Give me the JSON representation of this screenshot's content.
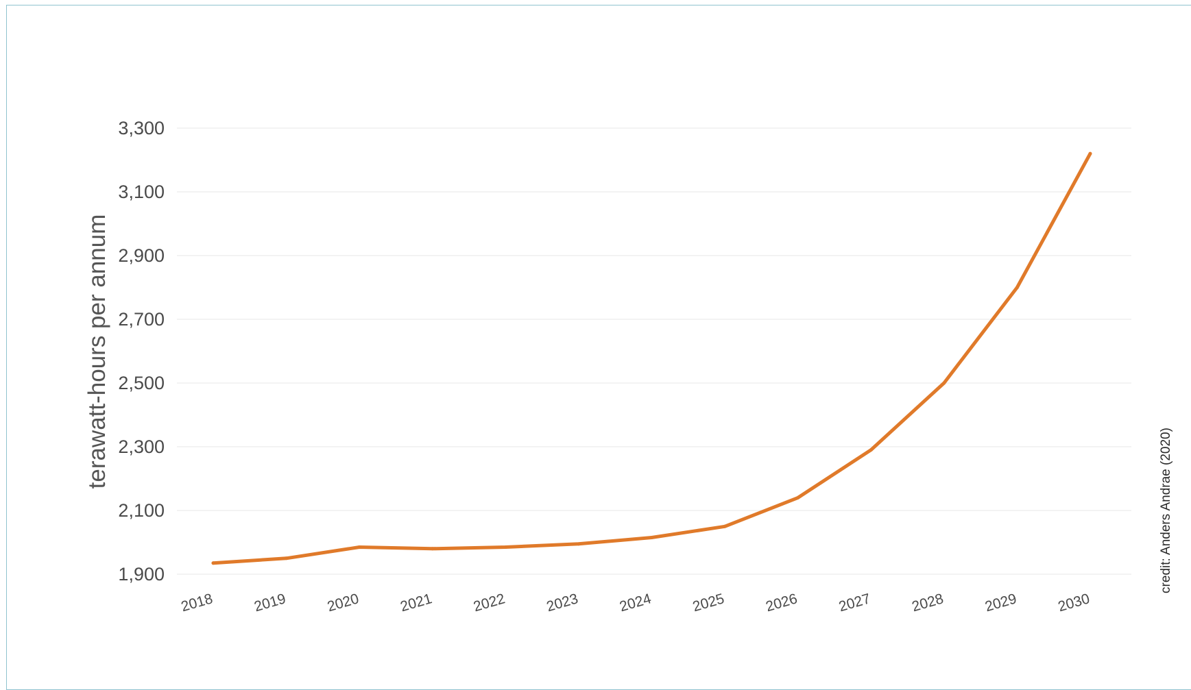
{
  "chart_data": {
    "type": "line",
    "title": "",
    "xlabel": "",
    "ylabel": "terawatt-hours per annum",
    "categories": [
      "2018",
      "2019",
      "2020",
      "2021",
      "2022",
      "2023",
      "2024",
      "2025",
      "2026",
      "2027",
      "2028",
      "2029",
      "2030"
    ],
    "series": [
      {
        "values": [
          1935,
          1950,
          1985,
          1980,
          1985,
          1995,
          2015,
          2050,
          2140,
          2290,
          2500,
          2800,
          3220
        ],
        "color": "#e07a2a"
      }
    ],
    "ylim": [
      1900,
      3300
    ],
    "yticks": [
      1900,
      2100,
      2300,
      2500,
      2700,
      2900,
      3100,
      3300
    ],
    "ytick_labels": [
      "1,900",
      "2,100",
      "2,300",
      "2,500",
      "2,700",
      "2,900",
      "3,100",
      "3,300"
    ],
    "grid": true,
    "legend": "none",
    "credit": "credit:  Anders Andrae (2020)"
  }
}
